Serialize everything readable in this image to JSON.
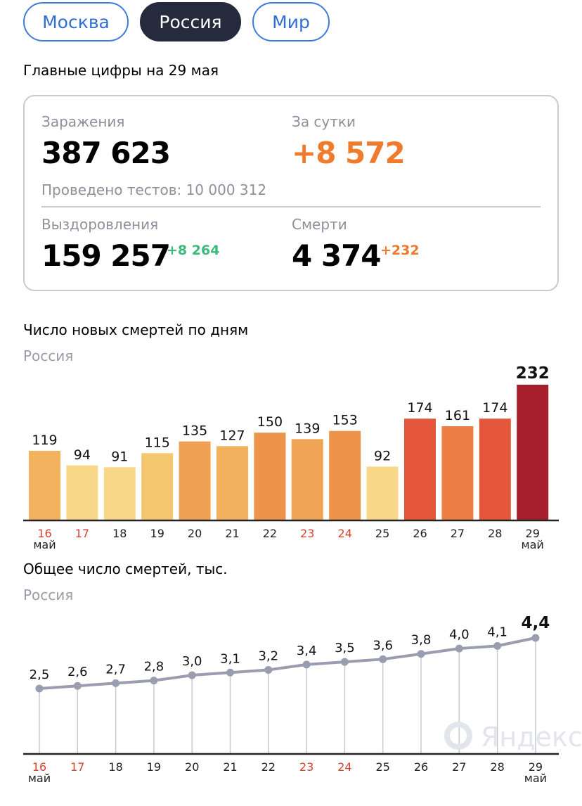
{
  "tabs": [
    {
      "label": "Москва",
      "active": false
    },
    {
      "label": "Россия",
      "active": true
    },
    {
      "label": "Мир",
      "active": false
    }
  ],
  "headline": "Главные цифры на 29 мая",
  "summary": {
    "infections_label": "Заражения",
    "infections": "387 623",
    "daily_label": "За сутки",
    "daily": "+8 572",
    "tests": "Проведено тестов: 10 000 312",
    "recovered_label": "Выздоровления",
    "recovered": "159 257",
    "recovered_inc": "+8 264",
    "deaths_label": "Смерти",
    "deaths": "4 374",
    "deaths_inc": "+232"
  },
  "colors": {
    "accent": "#f07b2c",
    "green": "#3cba7c",
    "red_date": "#d9412f"
  },
  "watermark": "Яндекс",
  "chart_data": [
    {
      "type": "bar",
      "title": "Число новых смертей по дням",
      "subtitle": "Россия",
      "categories": [
        "16",
        "17",
        "18",
        "19",
        "20",
        "21",
        "22",
        "23",
        "24",
        "25",
        "26",
        "27",
        "28",
        "29"
      ],
      "red_categories": [
        "16",
        "17",
        "23",
        "24"
      ],
      "month_label": "май",
      "values": [
        119,
        94,
        91,
        115,
        135,
        127,
        150,
        139,
        153,
        92,
        174,
        161,
        174,
        232
      ],
      "bar_colors": [
        "#f3b35e",
        "#f8d888",
        "#f8d888",
        "#f4c66e",
        "#efa052",
        "#f2b15d",
        "#ee934a",
        "#f0a456",
        "#ee934a",
        "#f8d888",
        "#e5573b",
        "#ed7f45",
        "#e5573b",
        "#a51f2c"
      ]
    },
    {
      "type": "line",
      "title": "Общее число смертей, тыс.",
      "subtitle": "Россия",
      "categories": [
        "16",
        "17",
        "18",
        "19",
        "20",
        "21",
        "22",
        "23",
        "24",
        "25",
        "26",
        "27",
        "28",
        "29"
      ],
      "red_categories": [
        "16",
        "17",
        "23",
        "24"
      ],
      "month_label": "май",
      "values": [
        2.5,
        2.6,
        2.7,
        2.8,
        3.0,
        3.1,
        3.2,
        3.4,
        3.5,
        3.6,
        3.8,
        4.0,
        4.1,
        4.4
      ],
      "value_labels": [
        "2,5",
        "2,6",
        "2,7",
        "2,8",
        "3,0",
        "3,1",
        "3,2",
        "3,4",
        "3,5",
        "3,6",
        "3,8",
        "4,0",
        "4,1",
        "4,4"
      ]
    }
  ]
}
